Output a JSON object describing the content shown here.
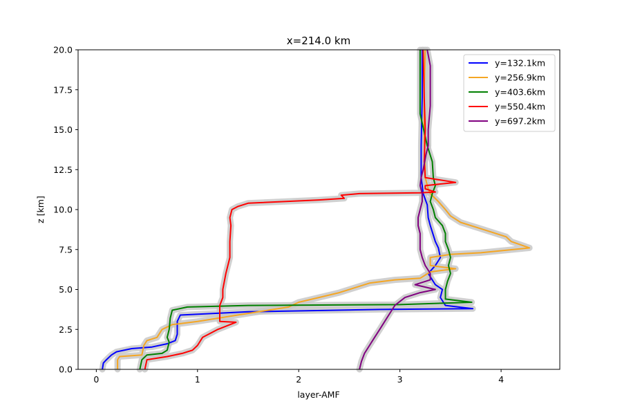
{
  "chart_data": {
    "type": "line",
    "title": "x=214.0 km",
    "xlabel": "layer-AMF",
    "ylabel": "z [km]",
    "xlim": [
      -0.18,
      4.58
    ],
    "ylim": [
      0,
      20
    ],
    "xticks": [
      0,
      1,
      2,
      3,
      4
    ],
    "xtick_labels": [
      "0",
      "1",
      "2",
      "3",
      "4"
    ],
    "yticks": [
      0,
      2.5,
      5,
      7.5,
      10,
      12.5,
      15,
      17.5,
      20
    ],
    "ytick_labels": [
      "0.0",
      "2.5",
      "5.0",
      "7.5",
      "10.0",
      "12.5",
      "15.0",
      "17.5",
      "20.0"
    ],
    "grid": false,
    "legend_position": "upper right",
    "band_color": "#c8c8c8",
    "series": [
      {
        "name": "y=132.1km",
        "color": "#0000ff",
        "points": [
          [
            0.06,
            0
          ],
          [
            0.07,
            0.4
          ],
          [
            0.1,
            0.6
          ],
          [
            0.15,
            0.9
          ],
          [
            0.2,
            1.1
          ],
          [
            0.35,
            1.3
          ],
          [
            0.55,
            1.4
          ],
          [
            0.7,
            1.6
          ],
          [
            0.78,
            1.8
          ],
          [
            0.8,
            2.2
          ],
          [
            0.8,
            3.0
          ],
          [
            0.83,
            3.4
          ],
          [
            1.5,
            3.6
          ],
          [
            2.8,
            3.75
          ],
          [
            3.72,
            3.8
          ],
          [
            3.45,
            4.0
          ],
          [
            3.4,
            4.5
          ],
          [
            3.42,
            5.0
          ],
          [
            3.35,
            5.3
          ],
          [
            3.28,
            6.0
          ],
          [
            3.35,
            6.5
          ],
          [
            3.4,
            7.0
          ],
          [
            3.38,
            7.6
          ],
          [
            3.35,
            8.0
          ],
          [
            3.3,
            9.0
          ],
          [
            3.28,
            9.5
          ],
          [
            3.27,
            10.3
          ],
          [
            3.23,
            11.0
          ],
          [
            3.22,
            11.5
          ],
          [
            3.21,
            12.0
          ],
          [
            3.21,
            14.0
          ],
          [
            3.22,
            17.0
          ],
          [
            3.22,
            20.0
          ]
        ]
      },
      {
        "name": "y=256.9km",
        "color": "#f5a623",
        "points": [
          [
            0.21,
            0
          ],
          [
            0.21,
            0.6
          ],
          [
            0.23,
            0.8
          ],
          [
            0.45,
            0.9
          ],
          [
            0.47,
            1.5
          ],
          [
            0.5,
            1.8
          ],
          [
            0.6,
            2.0
          ],
          [
            0.65,
            2.5
          ],
          [
            0.75,
            2.8
          ],
          [
            1.0,
            3.0
          ],
          [
            1.3,
            3.3
          ],
          [
            1.6,
            3.6
          ],
          [
            1.9,
            3.9
          ],
          [
            2.0,
            4.2
          ],
          [
            2.2,
            4.5
          ],
          [
            2.4,
            4.8
          ],
          [
            2.55,
            5.1
          ],
          [
            2.7,
            5.4
          ],
          [
            2.95,
            5.6
          ],
          [
            3.2,
            5.7
          ],
          [
            3.3,
            6.1
          ],
          [
            3.55,
            6.3
          ],
          [
            3.3,
            6.5
          ],
          [
            3.3,
            7.0
          ],
          [
            3.5,
            7.2
          ],
          [
            3.8,
            7.3
          ],
          [
            4.28,
            7.6
          ],
          [
            4.1,
            8.0
          ],
          [
            4.05,
            8.3
          ],
          [
            3.9,
            8.6
          ],
          [
            3.8,
            8.8
          ],
          [
            3.6,
            9.2
          ],
          [
            3.5,
            9.6
          ],
          [
            3.45,
            10.0
          ],
          [
            3.38,
            10.5
          ],
          [
            3.3,
            11.0
          ],
          [
            3.28,
            11.3
          ],
          [
            3.25,
            12.0
          ],
          [
            3.24,
            15.0
          ],
          [
            3.24,
            17.5
          ],
          [
            3.25,
            20.0
          ]
        ]
      },
      {
        "name": "y=403.6km",
        "color": "#008000",
        "points": [
          [
            0.43,
            0
          ],
          [
            0.45,
            0.6
          ],
          [
            0.5,
            0.9
          ],
          [
            0.65,
            1.0
          ],
          [
            0.7,
            1.2
          ],
          [
            0.72,
            1.7
          ],
          [
            0.7,
            2.0
          ],
          [
            0.72,
            2.5
          ],
          [
            0.73,
            3.2
          ],
          [
            0.75,
            3.7
          ],
          [
            0.9,
            3.9
          ],
          [
            1.5,
            4.0
          ],
          [
            3.0,
            4.05
          ],
          [
            3.71,
            4.2
          ],
          [
            3.45,
            4.4
          ],
          [
            3.45,
            5.0
          ],
          [
            3.47,
            5.5
          ],
          [
            3.5,
            6.0
          ],
          [
            3.48,
            6.5
          ],
          [
            3.5,
            7.0
          ],
          [
            3.48,
            7.5
          ],
          [
            3.45,
            8.0
          ],
          [
            3.45,
            8.5
          ],
          [
            3.42,
            9.0
          ],
          [
            3.35,
            9.5
          ],
          [
            3.33,
            10.0
          ],
          [
            3.3,
            10.5
          ],
          [
            3.32,
            11.0
          ],
          [
            3.35,
            11.5
          ],
          [
            3.33,
            12.0
          ],
          [
            3.32,
            13.0
          ],
          [
            3.27,
            14.0
          ],
          [
            3.2,
            16.0
          ],
          [
            3.2,
            20.0
          ]
        ]
      },
      {
        "name": "y=550.4km",
        "color": "#ff0000",
        "points": [
          [
            0.48,
            0
          ],
          [
            0.5,
            0.6
          ],
          [
            0.7,
            0.8
          ],
          [
            0.85,
            1.0
          ],
          [
            0.95,
            1.2
          ],
          [
            1.0,
            1.5
          ],
          [
            1.05,
            2.0
          ],
          [
            1.2,
            2.5
          ],
          [
            1.38,
            2.95
          ],
          [
            1.22,
            3.0
          ],
          [
            1.22,
            3.5
          ],
          [
            1.22,
            4.0
          ],
          [
            1.25,
            4.5
          ],
          [
            1.25,
            5.0
          ],
          [
            1.28,
            6.0
          ],
          [
            1.3,
            6.5
          ],
          [
            1.32,
            7.0
          ],
          [
            1.32,
            8.0
          ],
          [
            1.33,
            9.0
          ],
          [
            1.32,
            9.5
          ],
          [
            1.34,
            10.0
          ],
          [
            1.4,
            10.2
          ],
          [
            1.5,
            10.4
          ],
          [
            2.2,
            10.6
          ],
          [
            2.45,
            10.7
          ],
          [
            2.42,
            10.9
          ],
          [
            2.6,
            11.0
          ],
          [
            3.2,
            11.05
          ],
          [
            3.35,
            11.1
          ],
          [
            3.25,
            11.3
          ],
          [
            3.25,
            11.5
          ],
          [
            3.55,
            11.7
          ],
          [
            3.35,
            11.9
          ],
          [
            3.25,
            12.0
          ],
          [
            3.24,
            13.0
          ],
          [
            3.25,
            15.0
          ],
          [
            3.24,
            17.0
          ],
          [
            3.23,
            20.0
          ]
        ]
      },
      {
        "name": "y=697.2km",
        "color": "#800080",
        "points": [
          [
            2.6,
            0
          ],
          [
            2.62,
            0.5
          ],
          [
            2.65,
            1.0
          ],
          [
            2.7,
            1.5
          ],
          [
            2.75,
            2.0
          ],
          [
            2.8,
            2.5
          ],
          [
            2.85,
            3.0
          ],
          [
            2.9,
            3.5
          ],
          [
            2.95,
            4.0
          ],
          [
            3.05,
            4.5
          ],
          [
            3.2,
            4.8
          ],
          [
            3.35,
            5.0
          ],
          [
            3.15,
            5.3
          ],
          [
            3.3,
            5.6
          ],
          [
            3.3,
            6.0
          ],
          [
            3.25,
            6.5
          ],
          [
            3.22,
            7.0
          ],
          [
            3.2,
            7.5
          ],
          [
            3.2,
            8.0
          ],
          [
            3.2,
            8.5
          ],
          [
            3.18,
            9.0
          ],
          [
            3.18,
            9.5
          ],
          [
            3.2,
            10.0
          ],
          [
            3.22,
            10.5
          ],
          [
            3.22,
            11.0
          ],
          [
            3.2,
            11.5
          ],
          [
            3.21,
            12.0
          ],
          [
            3.23,
            12.5
          ],
          [
            3.26,
            13.5
          ],
          [
            3.28,
            14.0
          ],
          [
            3.28,
            15.0
          ],
          [
            3.3,
            16.5
          ],
          [
            3.3,
            18.0
          ],
          [
            3.3,
            19.0
          ],
          [
            3.27,
            20.0
          ]
        ]
      }
    ]
  }
}
